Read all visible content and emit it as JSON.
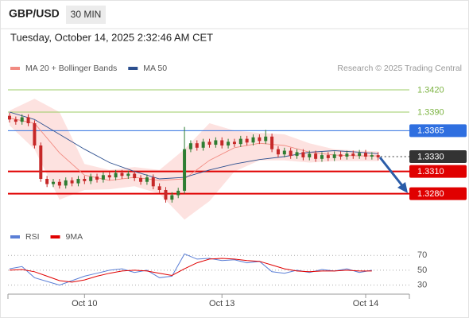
{
  "header": {
    "symbol": "GBP/USD",
    "timeframe": "30 MIN",
    "timestamp": "Tuesday, October 14, 2025 2:32:46 AM CET"
  },
  "chart_data": [
    {
      "type": "candlestick",
      "watermark": "Research © 2025 Trading Central",
      "xlim": [
        0,
        64
      ],
      "ylim": [
        1.324,
        1.3435
      ],
      "up_color": "#2e7d32",
      "down_color": "#c62828",
      "x": [
        0,
        1,
        2,
        3,
        4,
        5,
        6,
        7,
        8,
        9,
        10,
        11,
        12,
        13,
        14,
        15,
        16,
        17,
        18,
        19,
        20,
        21,
        22,
        23,
        24,
        25,
        26,
        27,
        28,
        29,
        30,
        31,
        32,
        33,
        34,
        35,
        36,
        37,
        38,
        39,
        40,
        41,
        42,
        43,
        44,
        45,
        46,
        47,
        48,
        49,
        50,
        51,
        52,
        53,
        54,
        55,
        56,
        57,
        58,
        59
      ],
      "open": [
        1.3385,
        1.338,
        1.3377,
        1.3383,
        1.3375,
        1.3345,
        1.33,
        1.3293,
        1.3296,
        1.3291,
        1.3298,
        1.3294,
        1.33,
        1.3297,
        1.3303,
        1.3299,
        1.3305,
        1.3302,
        1.3308,
        1.3304,
        1.3307,
        1.3301,
        1.3296,
        1.3302,
        1.329,
        1.3285,
        1.3272,
        1.3278,
        1.3284,
        1.334,
        1.3348,
        1.3342,
        1.335,
        1.3346,
        1.3352,
        1.3345,
        1.335,
        1.3347,
        1.3354,
        1.3349,
        1.3356,
        1.3351,
        1.3357,
        1.334,
        1.3333,
        1.3338,
        1.3331,
        1.3336,
        1.3329,
        1.3334,
        1.3327,
        1.3332,
        1.3328,
        1.3333,
        1.333,
        1.3334,
        1.3331,
        1.3335,
        1.333,
        1.3332
      ],
      "high": [
        1.3389,
        1.3384,
        1.3387,
        1.3387,
        1.3379,
        1.3349,
        1.3304,
        1.33,
        1.33,
        1.3302,
        1.3302,
        1.3304,
        1.3304,
        1.3307,
        1.3307,
        1.3309,
        1.3309,
        1.3312,
        1.3312,
        1.3311,
        1.3311,
        1.3305,
        1.3306,
        1.3306,
        1.3294,
        1.3289,
        1.3282,
        1.3288,
        1.337,
        1.3352,
        1.3352,
        1.3354,
        1.3354,
        1.3356,
        1.3356,
        1.3354,
        1.3354,
        1.3358,
        1.3358,
        1.336,
        1.336,
        1.3366,
        1.3361,
        1.3344,
        1.3342,
        1.3342,
        1.334,
        1.334,
        1.3338,
        1.3338,
        1.3336,
        1.3336,
        1.3337,
        1.3337,
        1.3338,
        1.3338,
        1.3339,
        1.3339,
        1.3336,
        1.3336
      ],
      "low": [
        1.3376,
        1.3373,
        1.3373,
        1.3371,
        1.3341,
        1.3296,
        1.3289,
        1.3289,
        1.3287,
        1.3287,
        1.329,
        1.329,
        1.3293,
        1.3293,
        1.3295,
        1.3295,
        1.3298,
        1.3298,
        1.33,
        1.33,
        1.3297,
        1.3292,
        1.3292,
        1.3286,
        1.3281,
        1.3268,
        1.3268,
        1.3274,
        1.328,
        1.3336,
        1.3338,
        1.3338,
        1.3342,
        1.3342,
        1.3341,
        1.3341,
        1.3343,
        1.3343,
        1.3345,
        1.3345,
        1.3347,
        1.3347,
        1.3336,
        1.3329,
        1.3329,
        1.3327,
        1.3327,
        1.3325,
        1.3325,
        1.3323,
        1.3323,
        1.3324,
        1.3324,
        1.3326,
        1.3326,
        1.3327,
        1.3327,
        1.3326,
        1.3326,
        1.3325
      ],
      "close": [
        1.338,
        1.3377,
        1.3383,
        1.3375,
        1.3345,
        1.33,
        1.3293,
        1.3296,
        1.3291,
        1.3298,
        1.3294,
        1.33,
        1.3297,
        1.3303,
        1.3299,
        1.3305,
        1.3302,
        1.3308,
        1.3304,
        1.3307,
        1.3301,
        1.3296,
        1.3302,
        1.329,
        1.3285,
        1.3272,
        1.3278,
        1.3284,
        1.334,
        1.3348,
        1.3342,
        1.335,
        1.3346,
        1.3352,
        1.3345,
        1.335,
        1.3347,
        1.3354,
        1.3349,
        1.3356,
        1.3351,
        1.3357,
        1.334,
        1.3333,
        1.3338,
        1.3331,
        1.3336,
        1.3329,
        1.3334,
        1.3327,
        1.3332,
        1.3328,
        1.3333,
        1.333,
        1.3334,
        1.3331,
        1.3335,
        1.333,
        1.3332,
        1.3329
      ],
      "series": [
        {
          "name": "MA 20 + Bollinger Bands",
          "color": "#f28b82",
          "band_color": "#fde2e0",
          "x": [
            0,
            4,
            8,
            12,
            16,
            20,
            24,
            28,
            32,
            36,
            40,
            44,
            48,
            52,
            56,
            59
          ],
          "values": [
            1.3382,
            1.3375,
            1.3335,
            1.3305,
            1.3298,
            1.3302,
            1.3298,
            1.33,
            1.3325,
            1.3342,
            1.3348,
            1.3345,
            1.3336,
            1.3332,
            1.3331,
            1.3331
          ],
          "upper": [
            1.3392,
            1.3408,
            1.339,
            1.332,
            1.3312,
            1.3316,
            1.3312,
            1.334,
            1.3375,
            1.3365,
            1.3362,
            1.336,
            1.3348,
            1.334,
            1.3338,
            1.3337
          ],
          "lower": [
            1.3372,
            1.334,
            1.3272,
            1.3285,
            1.3286,
            1.329,
            1.328,
            1.3245,
            1.327,
            1.331,
            1.3325,
            1.3325,
            1.3322,
            1.3324,
            1.3324,
            1.3324
          ]
        },
        {
          "name": "MA 50",
          "color": "#2c4f8f",
          "x": [
            0,
            4,
            8,
            12,
            16,
            20,
            24,
            28,
            32,
            36,
            40,
            44,
            48,
            52,
            56,
            59
          ],
          "values": [
            1.339,
            1.338,
            1.336,
            1.334,
            1.3322,
            1.331,
            1.33,
            1.3302,
            1.3312,
            1.332,
            1.3326,
            1.333,
            1.3336,
            1.3338,
            1.3336,
            1.3334
          ]
        }
      ],
      "levels": [
        {
          "value": 1.342,
          "label": "1.3420",
          "color": "#9ccc65",
          "boxed": false,
          "line_style": "solid"
        },
        {
          "value": 1.339,
          "label": "1.3390",
          "color": "#9ccc65",
          "boxed": false,
          "line_style": "solid"
        },
        {
          "value": 1.3365,
          "label": "1.3365",
          "color": "#2f6fe0",
          "boxed": true,
          "line_style": "solid"
        },
        {
          "value": 1.333,
          "label": "1.3330",
          "color": "#333333",
          "boxed": true,
          "line_style": "dotted"
        },
        {
          "value": 1.331,
          "label": "1.3310",
          "color": "#e00000",
          "boxed": true,
          "line_style": "thick"
        },
        {
          "value": 1.328,
          "label": "1.3280",
          "color": "#e00000",
          "boxed": true,
          "line_style": "thick"
        }
      ]
    },
    {
      "type": "line",
      "xlim": [
        0,
        64
      ],
      "ylim": [
        20,
        82
      ],
      "yticks": [
        30,
        50,
        70
      ],
      "xticks": [
        {
          "value": 12,
          "label": "Oct 10"
        },
        {
          "value": 34,
          "label": "Oct 13"
        },
        {
          "value": 57,
          "label": "Oct 14"
        }
      ],
      "x": [
        0,
        2,
        4,
        6,
        8,
        10,
        12,
        14,
        16,
        18,
        20,
        22,
        24,
        26,
        28,
        30,
        32,
        34,
        36,
        38,
        40,
        42,
        44,
        46,
        48,
        50,
        52,
        54,
        56,
        58
      ],
      "series": [
        {
          "name": "RSI",
          "color": "#5b7fd6",
          "values": [
            52,
            55,
            40,
            35,
            30,
            36,
            42,
            46,
            50,
            52,
            47,
            50,
            40,
            42,
            72,
            65,
            66,
            63,
            64,
            60,
            62,
            48,
            46,
            50,
            47,
            51,
            49,
            52,
            47,
            50
          ]
        },
        {
          "name": "9MA",
          "color": "#e00000",
          "values": [
            50,
            51,
            48,
            42,
            36,
            34,
            37,
            42,
            46,
            49,
            50,
            49,
            46,
            43,
            52,
            60,
            65,
            66,
            65,
            63,
            62,
            57,
            52,
            49,
            48,
            49,
            49,
            50,
            49,
            49
          ]
        }
      ]
    }
  ]
}
